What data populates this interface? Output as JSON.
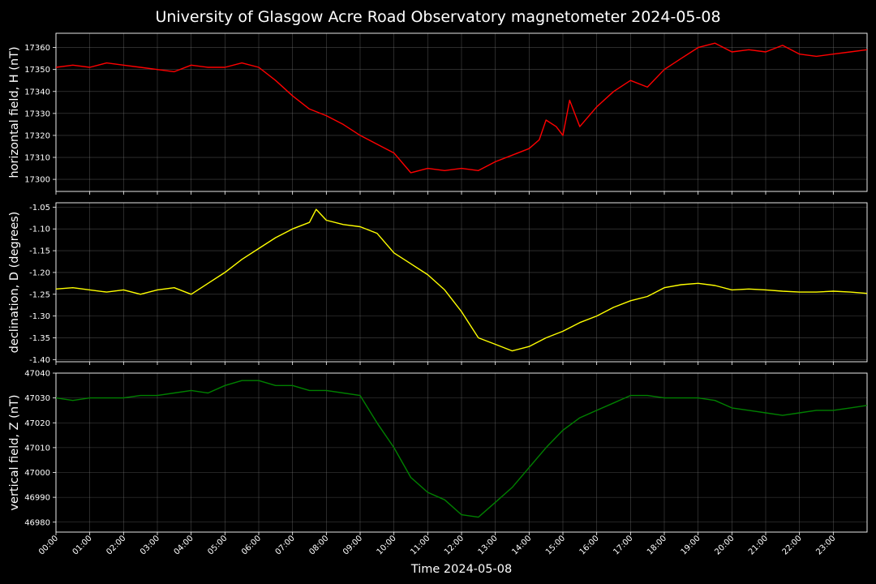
{
  "title": "University of Glasgow Acre Road Observatory magnetometer 2024-05-08",
  "xlabel": "Time 2024-05-08",
  "x_ticks": [
    "00:00",
    "01:00",
    "02:00",
    "03:00",
    "04:00",
    "05:00",
    "06:00",
    "07:00",
    "08:00",
    "09:00",
    "10:00",
    "11:00",
    "12:00",
    "13:00",
    "14:00",
    "15:00",
    "16:00",
    "17:00",
    "18:00",
    "19:00",
    "20:00",
    "21:00",
    "22:00",
    "23:00"
  ],
  "colors": {
    "background": "#000000",
    "H": "#ff0000",
    "D": "#ffff00",
    "Z": "#008000",
    "grid": "#808080"
  },
  "chart_data": [
    {
      "type": "line",
      "ylabel": "horizontal field, H (nT)",
      "ylim": [
        17294.5,
        17366.5
      ],
      "y_ticks": [
        17300,
        17310,
        17320,
        17330,
        17340,
        17350,
        17360
      ],
      "xlim": [
        0,
        24
      ],
      "grid": true,
      "series": [
        {
          "color": "#ff0000",
          "x": [
            0,
            0.5,
            1,
            1.5,
            2,
            2.5,
            3,
            3.5,
            4,
            4.5,
            5,
            5.5,
            6,
            6.5,
            7,
            7.5,
            8,
            8.5,
            9,
            9.5,
            10,
            10.5,
            11,
            11.5,
            12,
            12.5,
            13,
            13.5,
            14,
            14.3,
            14.5,
            14.8,
            15,
            15.2,
            15.5,
            16,
            16.5,
            17,
            17.5,
            18,
            18.5,
            19,
            19.5,
            20,
            20.5,
            21,
            21.5,
            22,
            22.5,
            23,
            23.5,
            24
          ],
          "y": [
            17351,
            17352,
            17351,
            17353,
            17352,
            17351,
            17350,
            17349,
            17352,
            17351,
            17351,
            17353,
            17351,
            17345,
            17338,
            17332,
            17329,
            17325,
            17320,
            17316,
            17312,
            17303,
            17305,
            17304,
            17305,
            17304,
            17308,
            17311,
            17314,
            17318,
            17327,
            17324,
            17320,
            17336,
            17324,
            17333,
            17340,
            17345,
            17342,
            17350,
            17355,
            17360,
            17362,
            17358,
            17359,
            17358,
            17361,
            17357,
            17356,
            17357,
            17358,
            17359
          ]
        }
      ]
    },
    {
      "type": "line",
      "ylabel": "declination, D (degrees)",
      "ylim": [
        -1.405,
        -1.04
      ],
      "y_ticks": [
        -1.05,
        -1.1,
        -1.15,
        -1.2,
        -1.25,
        -1.3,
        -1.35,
        -1.4
      ],
      "xlim": [
        0,
        24
      ],
      "grid": true,
      "series": [
        {
          "color": "#ffff00",
          "x": [
            0,
            0.5,
            1,
            1.5,
            2,
            2.5,
            3,
            3.5,
            4,
            4.5,
            5,
            5.5,
            6,
            6.5,
            7,
            7.5,
            7.7,
            8,
            8.5,
            9,
            9.5,
            10,
            10.5,
            11,
            11.5,
            12,
            12.5,
            13,
            13.5,
            14,
            14.5,
            15,
            15.5,
            16,
            16.5,
            17,
            17.5,
            18,
            18.5,
            19,
            19.5,
            20,
            20.5,
            21,
            21.5,
            22,
            22.5,
            23,
            23.5,
            24
          ],
          "y": [
            -1.238,
            -1.235,
            -1.24,
            -1.245,
            -1.24,
            -1.25,
            -1.24,
            -1.235,
            -1.25,
            -1.225,
            -1.2,
            -1.17,
            -1.145,
            -1.12,
            -1.1,
            -1.085,
            -1.055,
            -1.08,
            -1.09,
            -1.095,
            -1.11,
            -1.155,
            -1.18,
            -1.205,
            -1.24,
            -1.29,
            -1.35,
            -1.365,
            -1.38,
            -1.37,
            -1.35,
            -1.335,
            -1.315,
            -1.3,
            -1.28,
            -1.265,
            -1.255,
            -1.235,
            -1.228,
            -1.225,
            -1.23,
            -1.24,
            -1.238,
            -1.24,
            -1.243,
            -1.245,
            -1.245,
            -1.243,
            -1.245,
            -1.248
          ]
        }
      ]
    },
    {
      "type": "line",
      "ylabel": "vertical field, Z (nT)",
      "ylim": [
        46976,
        47040
      ],
      "y_ticks": [
        46980,
        46990,
        47000,
        47010,
        47020,
        47030,
        47040
      ],
      "xlim": [
        0,
        24
      ],
      "grid": true,
      "series": [
        {
          "color": "#008000",
          "x": [
            0,
            0.5,
            1,
            1.5,
            2,
            2.5,
            3,
            3.5,
            4,
            4.5,
            5,
            5.5,
            6,
            6.5,
            7,
            7.5,
            8,
            8.5,
            9,
            9.5,
            10,
            10.5,
            11,
            11.5,
            12,
            12.5,
            13,
            13.5,
            14,
            14.5,
            15,
            15.5,
            16,
            16.5,
            17,
            17.5,
            18,
            18.5,
            19,
            19.5,
            20,
            20.5,
            21,
            21.5,
            22,
            22.5,
            23,
            23.5,
            24
          ],
          "y": [
            47030,
            47029,
            47030,
            47030,
            47030,
            47031,
            47031,
            47032,
            47033,
            47032,
            47035,
            47037,
            47037,
            47035,
            47035,
            47033,
            47033,
            47032,
            47031,
            47020,
            47010,
            46998,
            46992,
            46989,
            46983,
            46982,
            46988,
            46994,
            47002,
            47010,
            47017,
            47022,
            47025,
            47028,
            47031,
            47031,
            47030,
            47030,
            47030,
            47029,
            47026,
            47025,
            47024,
            47023,
            47024,
            47025,
            47025,
            47026,
            47027
          ]
        }
      ]
    }
  ]
}
